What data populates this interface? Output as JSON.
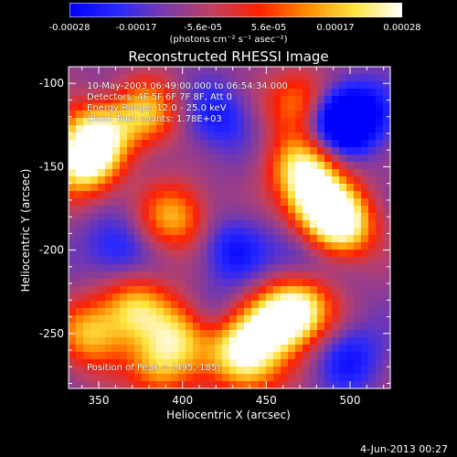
{
  "chart_data": {
    "type": "heatmap",
    "title": "Reconstructed RHESSI Image",
    "xlabel": "Heliocentric X (arcsec)",
    "ylabel": "Heliocentric Y (arcsec)",
    "xlim": [
      332,
      524
    ],
    "ylim": [
      -283,
      -90
    ],
    "x_ticks": [
      350,
      400,
      450,
      500
    ],
    "y_ticks": [
      -100,
      -150,
      -200,
      -250
    ],
    "colorbar": {
      "range": [
        -0.00028,
        0.00028
      ],
      "tick_labels": [
        "-0.00028",
        "-0.00017",
        "-5.6e-05",
        "5.6e-05",
        "0.00017",
        "0.00028"
      ],
      "units": "(photons cm⁻² s⁻¹ asec⁻²)",
      "colormap": [
        "#0000ff",
        "#2828ff",
        "#7a3aa8",
        "#c04060",
        "#ff2000",
        "#ff8c00",
        "#ffe440",
        "#ffffff"
      ]
    },
    "annotations": {
      "time": "10-May-2003 06:49:00.000 to 06:54:34.000",
      "detectors": "Detectors: 4F 5F 6F 7F 8F, Att 0",
      "energy": "Energy Range: 12.0 - 25.0 keV",
      "clean": "Clean     Total counts: 1.78E+03",
      "peak": "Position of Peak = [495,-185]"
    },
    "peak": {
      "x": 495,
      "y": -185
    },
    "bright_regions": [
      {
        "x": 348,
        "y": -132,
        "level": 0.9
      },
      {
        "x": 340,
        "y": -150,
        "level": 0.75
      },
      {
        "x": 378,
        "y": -118,
        "level": 0.6
      },
      {
        "x": 470,
        "y": -112,
        "level": 0.55
      },
      {
        "x": 472,
        "y": -150,
        "level": 0.7
      },
      {
        "x": 480,
        "y": -170,
        "level": 0.8
      },
      {
        "x": 495,
        "y": -185,
        "level": 1.0
      },
      {
        "x": 395,
        "y": -180,
        "level": 0.55
      },
      {
        "x": 440,
        "y": -270,
        "level": 0.45
      },
      {
        "x": 470,
        "y": -235,
        "level": 0.85
      },
      {
        "x": 455,
        "y": -245,
        "level": 0.75
      },
      {
        "x": 430,
        "y": -255,
        "level": 0.65
      },
      {
        "x": 372,
        "y": -235,
        "level": 0.6
      },
      {
        "x": 400,
        "y": -250,
        "level": 0.6
      },
      {
        "x": 345,
        "y": -250,
        "level": 0.6
      },
      {
        "x": 385,
        "y": -270,
        "level": 0.5
      }
    ],
    "dark_regions": [
      {
        "x": 490,
        "y": -122,
        "level": -0.9
      },
      {
        "x": 505,
        "y": -120,
        "level": -0.7
      },
      {
        "x": 420,
        "y": -120,
        "level": -0.5
      },
      {
        "x": 430,
        "y": -200,
        "level": -0.5
      },
      {
        "x": 420,
        "y": -245,
        "level": -0.55
      },
      {
        "x": 360,
        "y": -200,
        "level": -0.45
      },
      {
        "x": 500,
        "y": -265,
        "level": -0.5
      },
      {
        "x": 470,
        "y": -205,
        "level": -0.4
      }
    ],
    "grid": false
  },
  "footer": {
    "date": "4-Jun-2013 00:27"
  }
}
